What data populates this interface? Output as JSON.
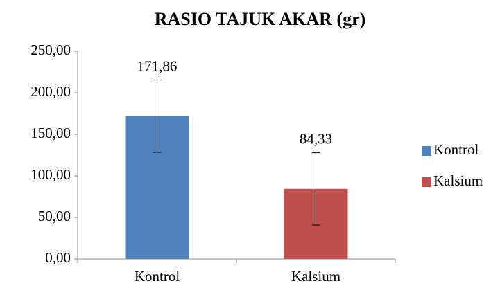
{
  "chart_data": {
    "type": "bar",
    "title": "RASIO TAJUK AKAR (gr)",
    "categories": [
      "Kontrol",
      "Kalsium"
    ],
    "series": [
      {
        "name": "Kontrol",
        "color": "#4f81bd",
        "values": [
          171.86,
          null
        ],
        "errors": [
          43.5,
          null
        ],
        "value_labels": [
          "171,86",
          null
        ]
      },
      {
        "name": "Kalsium",
        "color": "#c0504d",
        "values": [
          null,
          84.33
        ],
        "errors": [
          null,
          43.5
        ],
        "value_labels": [
          null,
          "84,33"
        ]
      }
    ],
    "ylim": [
      0,
      250
    ],
    "yticks": [
      {
        "value": 0,
        "label": "0,00"
      },
      {
        "value": 50,
        "label": "50,00"
      },
      {
        "value": 100,
        "label": "100,00"
      },
      {
        "value": 150,
        "label": "150,00"
      },
      {
        "value": 200,
        "label": "200,00"
      },
      {
        "value": 250,
        "label": "250,00"
      }
    ],
    "grid": false,
    "legend": "right"
  }
}
